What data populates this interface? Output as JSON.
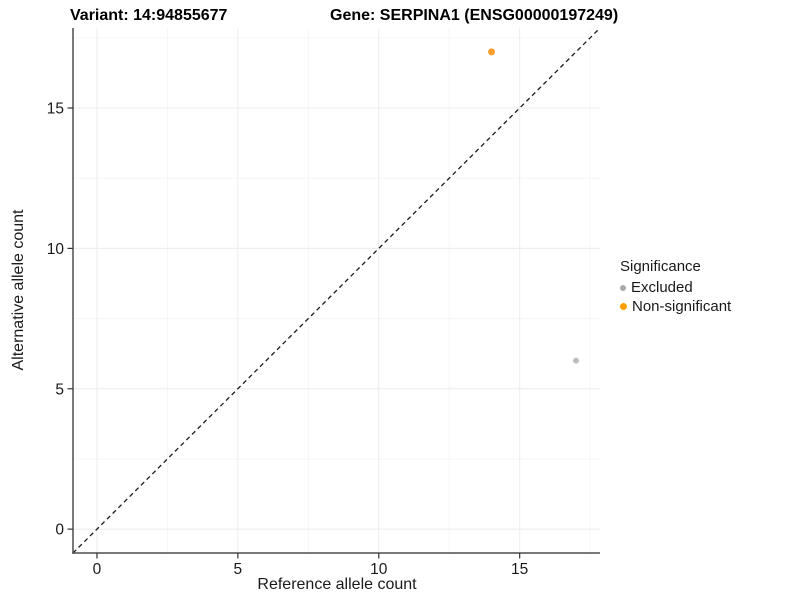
{
  "chart_data": {
    "type": "scatter",
    "title_left": "Variant: 14:94855677",
    "title_right": "Gene: SERPINA1 (ENSG00000197249)",
    "xlabel": "Reference allele count",
    "ylabel": "Alternative allele count",
    "xlim": [
      -0.85,
      17.85
    ],
    "ylim": [
      -0.85,
      17.85
    ],
    "x_major_ticks": [
      0,
      5,
      10,
      15
    ],
    "y_major_ticks": [
      0,
      5,
      10,
      15
    ],
    "x_minor_gridlines": [
      2.5,
      7.5,
      12.5,
      17.5
    ],
    "y_minor_gridlines": [
      2.5,
      7.5,
      12.5,
      17.5
    ],
    "grid": "on",
    "reference_line": {
      "type": "identity",
      "slope": 1,
      "intercept": 0,
      "style": "dashed",
      "color": "#1a1a1a"
    },
    "series": [
      {
        "name": "Excluded",
        "color": "#bebebe",
        "marker_diameter_px": 6,
        "points": [
          {
            "x": 17,
            "y": 6
          }
        ]
      },
      {
        "name": "Non-significant",
        "color": "#fba02e",
        "marker_diameter_px": 7,
        "points": [
          {
            "x": 14,
            "y": 17
          }
        ]
      }
    ],
    "legend": {
      "title": "Significance",
      "position": "right",
      "entries": [
        {
          "label": "Excluded",
          "color": "#a9a9a9",
          "marker_diameter_px": 6
        },
        {
          "label": "Non-significant",
          "color": "#ff9d00",
          "marker_diameter_px": 7
        }
      ]
    }
  }
}
